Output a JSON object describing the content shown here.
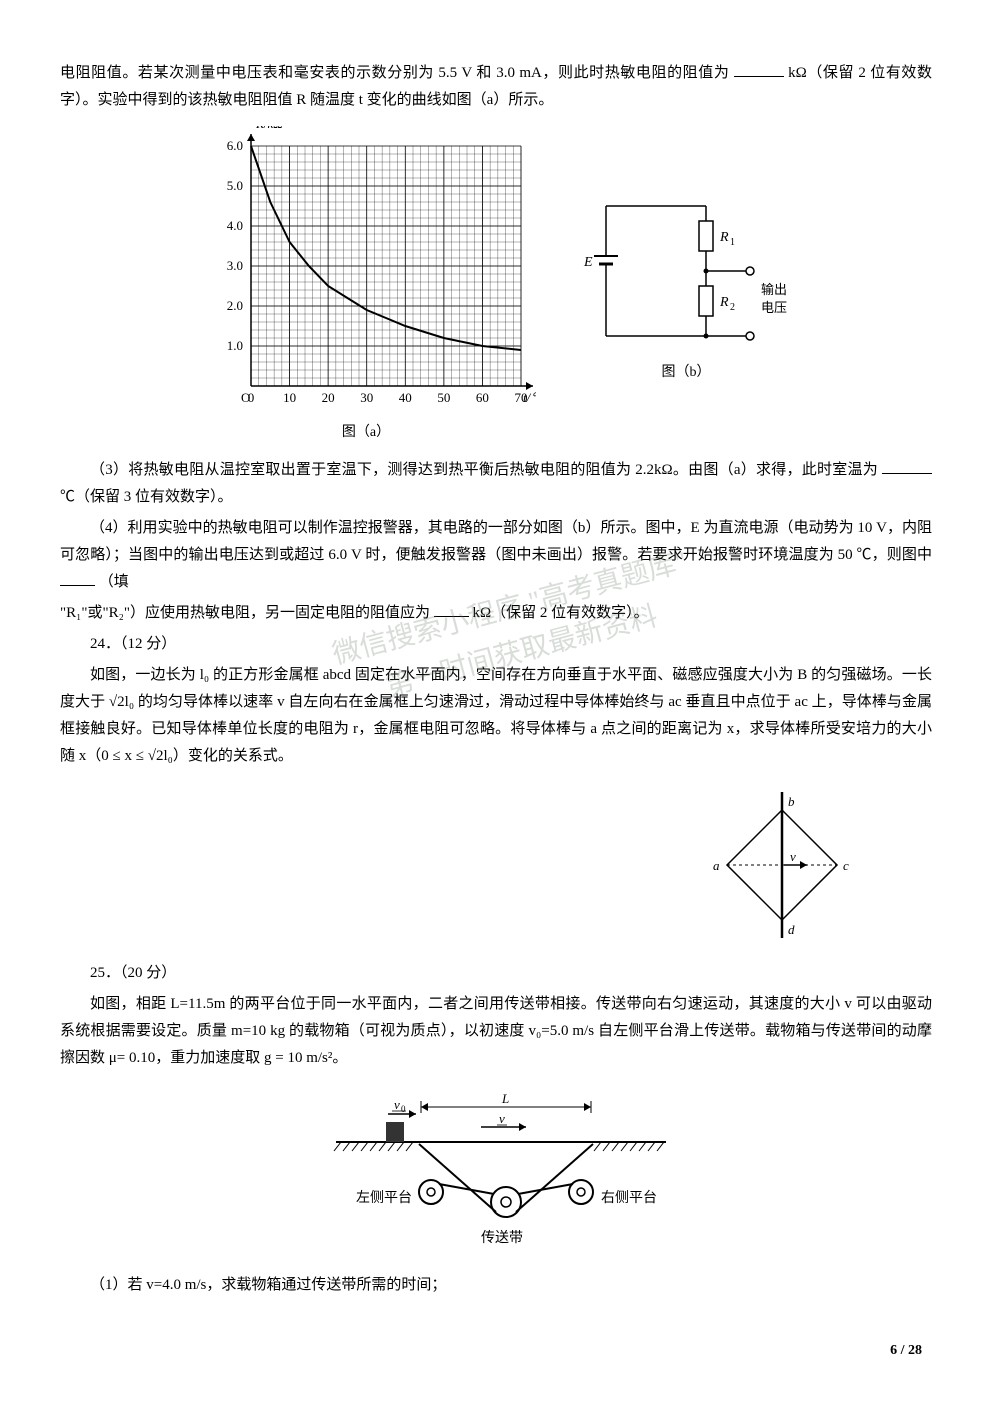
{
  "p1": "电阻阻值。若某次测量中电压表和毫安表的示数分别为 5.5 V 和 3.0 mA，则此时热敏电阻的阻值为",
  "p1b": "kΩ（保留 2 位有效数字）。实验中得到的该热敏电阻阻值 R 随温度 t 变化的曲线如图（a）所示。",
  "chart_a": {
    "ylabel": "R/kΩ",
    "xlabel": "t/℃",
    "xticks": [
      "0",
      "10",
      "20",
      "30",
      "40",
      "50",
      "60",
      "70"
    ],
    "yticks": [
      "1.0",
      "2.0",
      "3.0",
      "4.0",
      "5.0",
      "6.0"
    ],
    "curve_points": [
      [
        0,
        6.0
      ],
      [
        5,
        4.6
      ],
      [
        10,
        3.6
      ],
      [
        15,
        3.0
      ],
      [
        20,
        2.5
      ],
      [
        25,
        2.2
      ],
      [
        30,
        1.9
      ],
      [
        35,
        1.7
      ],
      [
        40,
        1.5
      ],
      [
        50,
        1.2
      ],
      [
        60,
        1.0
      ],
      [
        70,
        0.9
      ]
    ],
    "label": "图（a）",
    "grid_color": "#000000",
    "line_color": "#000000",
    "bg_color": "#ffffff"
  },
  "circuit_b": {
    "E": "E",
    "R1": "R₁",
    "R2": "R₂",
    "out": "输出\n电压",
    "label": "图（b）",
    "line_color": "#000000"
  },
  "p3": "（3）将热敏电阻从温控室取出置于室温下，测得达到热平衡后热敏电阻的阻值为 2.2kΩ。由图（a）求得，此时室温为",
  "p3b": "℃（保留 3 位有效数字）。",
  "p4": "（4）利用实验中的热敏电阻可以制作温控报警器，其电路的一部分如图（b）所示。图中，E 为直流电源（电动势为 10 V，内阻可忽略）；当图中的输出电压达到或超过 6.0 V 时，便触发报警器（图中未画出）报警。若要求开始报警时环境温度为 50 ℃，则图中",
  "p4b": "（填",
  "p4c": "\"R₁\"或\"R₂\"）应使用热敏电阻，另一固定电阻的阻值应为",
  "p4d": "kΩ（保留 2 位有效数字）。",
  "q24_num": "24．（12 分）",
  "q24_p1": "如图，一边长为 l₀ 的正方形金属框 abcd 固定在水平面内，空间存在方向垂直于水平面、磁感应强度大小为 B 的匀强磁场。一长度大于 √2l₀ 的均匀导体棒以速率 v 自左向右在金属框上匀速滑过，滑动过程中导体棒始终与 ac 垂直且中点位于 ac 上，导体棒与金属框接触良好。已知导体棒单位长度的电阻为 r，金属框电阻可忽略。将导体棒与 a 点之间的距离记为 x，求导体棒所受安培力的大小随 x（0 ≤ x ≤ √2l₀）变化的关系式。",
  "q24_diagram": {
    "labels": {
      "a": "a",
      "b": "b",
      "c": "c",
      "d": "d",
      "v": "v"
    },
    "line_color": "#000000"
  },
  "q25_num": "25．（20 分）",
  "q25_p1": "如图，相距 L=11.5m 的两平台位于同一水平面内，二者之间用传送带相接。传送带向右匀速运动，其速度的大小 v 可以由驱动系统根据需要设定。质量 m=10 kg 的载物箱（可视为质点），以初速度 v₀=5.0 m/s 自左侧平台滑上传送带。载物箱与传送带间的动摩擦因数 μ= 0.10，重力加速度取 g = 10 m/s²。",
  "q25_diagram": {
    "v0": "v₀",
    "L": "L",
    "v": "v",
    "left": "左侧平台",
    "right": "右侧平台",
    "belt": "传送带",
    "line_color": "#000000",
    "hatch_color": "#000000"
  },
  "q25_sub1": "（1）若 v=4.0 m/s，求载物箱通过传送带所需的时间；",
  "watermark_text": "微信搜索小程序 \"高考真题库\"\n第一时间获取最新资料",
  "page_number": "6 / 28"
}
